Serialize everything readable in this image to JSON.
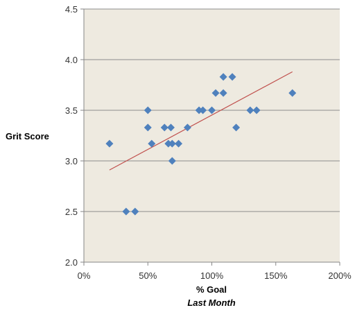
{
  "chart_data": {
    "type": "scatter",
    "title": "",
    "xlabel": "% Goal",
    "xlabel_sub": "Last Month",
    "ylabel": "Grit Score",
    "xlim": [
      0,
      2
    ],
    "ylim": [
      2.0,
      4.5
    ],
    "x_ticks": [
      0,
      0.5,
      1.0,
      1.5,
      2.0
    ],
    "x_tick_labels": [
      "0%",
      "50%",
      "100%",
      "150%",
      "200%"
    ],
    "y_ticks": [
      2.0,
      2.5,
      3.0,
      3.5,
      4.0,
      4.5
    ],
    "y_tick_labels": [
      "2.0",
      "2.5",
      "3.0",
      "3.5",
      "4.0",
      "4.5"
    ],
    "grid": "horizontal",
    "legend": "none",
    "marker": "diamond",
    "colors": {
      "plot_background": "#EEEAE0",
      "marker": "#4F81BD",
      "trendline": "#C0504D",
      "grid": "#8C8C8C"
    },
    "series": [
      {
        "points": [
          {
            "x": 0.2,
            "y": 3.17
          },
          {
            "x": 0.33,
            "y": 2.5
          },
          {
            "x": 0.4,
            "y": 2.5
          },
          {
            "x": 0.5,
            "y": 3.5
          },
          {
            "x": 0.5,
            "y": 3.33
          },
          {
            "x": 0.53,
            "y": 3.17
          },
          {
            "x": 0.63,
            "y": 3.33
          },
          {
            "x": 0.66,
            "y": 3.17
          },
          {
            "x": 0.68,
            "y": 3.33
          },
          {
            "x": 0.69,
            "y": 3.17
          },
          {
            "x": 0.69,
            "y": 3.0
          },
          {
            "x": 0.74,
            "y": 3.17
          },
          {
            "x": 0.81,
            "y": 3.33
          },
          {
            "x": 0.9,
            "y": 3.5
          },
          {
            "x": 0.93,
            "y": 3.5
          },
          {
            "x": 1.0,
            "y": 3.5
          },
          {
            "x": 1.03,
            "y": 3.67
          },
          {
            "x": 1.09,
            "y": 3.83
          },
          {
            "x": 1.09,
            "y": 3.67
          },
          {
            "x": 1.16,
            "y": 3.83
          },
          {
            "x": 1.19,
            "y": 3.33
          },
          {
            "x": 1.3,
            "y": 3.5
          },
          {
            "x": 1.35,
            "y": 3.5
          },
          {
            "x": 1.63,
            "y": 3.67
          }
        ]
      }
    ],
    "trendline": {
      "type": "linear",
      "x_start": 0.2,
      "y_start": 2.91,
      "x_end": 1.63,
      "y_end": 3.88
    }
  }
}
